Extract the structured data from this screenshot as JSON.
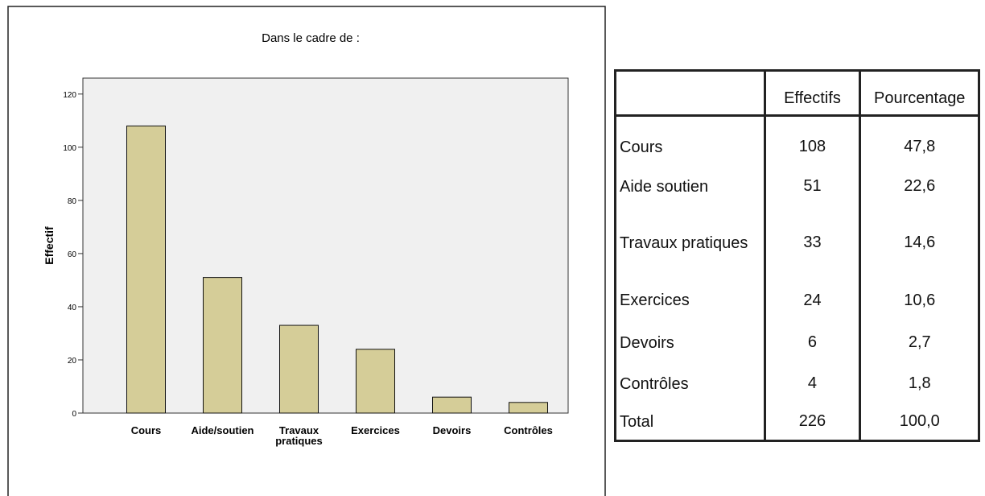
{
  "chart_data": {
    "type": "bar",
    "title": "Dans le cadre de :",
    "y_label": "Effectif",
    "categories": [
      "Cours",
      "Aide/soutien",
      "Travaux\npratiques",
      "Exercices",
      "Devoirs",
      "Contrôles"
    ],
    "values": [
      108,
      51,
      33,
      24,
      6,
      4
    ],
    "color": "#d5cd98",
    "ylim": [
      0,
      126
    ],
    "yticks": [
      0,
      20,
      40,
      60,
      80,
      100,
      120
    ]
  },
  "table": {
    "columns": [
      "Effectifs",
      "Pourcentage"
    ],
    "rows": [
      [
        "Cours",
        108,
        "47,8"
      ],
      [
        "Aide soutien",
        51,
        "22,6"
      ],
      [
        "Travaux pratiques",
        33,
        "14,6"
      ],
      [
        "Exercices",
        24,
        "10,6"
      ],
      [
        "Devoirs",
        6,
        "2,7"
      ],
      [
        "Contrôles",
        4,
        "1,8"
      ],
      [
        "Total",
        226,
        "100,0"
      ]
    ]
  }
}
